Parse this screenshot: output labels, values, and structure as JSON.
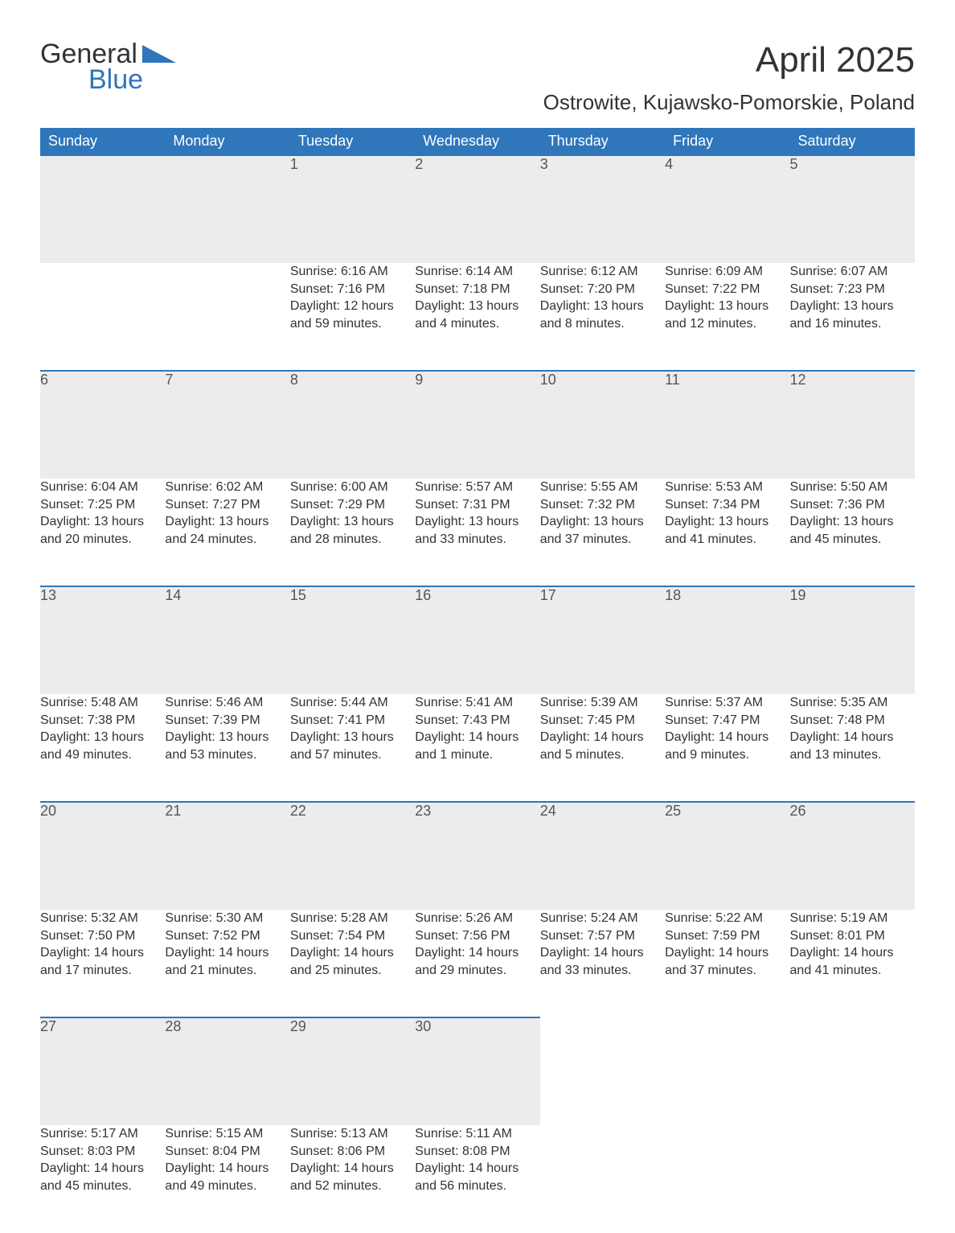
{
  "brand": {
    "word1": "General",
    "word2": "Blue",
    "text_color": "#333333",
    "accent_color": "#2f76bb"
  },
  "title": {
    "month": "April 2025",
    "location": "Ostrowite, Kujawsko-Pomorskie, Poland",
    "month_fontsize": 44,
    "location_fontsize": 26
  },
  "calendar": {
    "type": "table",
    "header_bg": "#2f76bb",
    "header_text_color": "#ffffff",
    "daynum_bg": "#ececec",
    "row_divider_color": "#2f76bb",
    "body_text_color": "#333333",
    "background_color": "#ffffff",
    "columns": [
      "Sunday",
      "Monday",
      "Tuesday",
      "Wednesday",
      "Thursday",
      "Friday",
      "Saturday"
    ],
    "weeks": [
      [
        null,
        null,
        {
          "day": "1",
          "sunrise": "Sunrise: 6:16 AM",
          "sunset": "Sunset: 7:16 PM",
          "dl1": "Daylight: 12 hours",
          "dl2": "and 59 minutes."
        },
        {
          "day": "2",
          "sunrise": "Sunrise: 6:14 AM",
          "sunset": "Sunset: 7:18 PM",
          "dl1": "Daylight: 13 hours",
          "dl2": "and 4 minutes."
        },
        {
          "day": "3",
          "sunrise": "Sunrise: 6:12 AM",
          "sunset": "Sunset: 7:20 PM",
          "dl1": "Daylight: 13 hours",
          "dl2": "and 8 minutes."
        },
        {
          "day": "4",
          "sunrise": "Sunrise: 6:09 AM",
          "sunset": "Sunset: 7:22 PM",
          "dl1": "Daylight: 13 hours",
          "dl2": "and 12 minutes."
        },
        {
          "day": "5",
          "sunrise": "Sunrise: 6:07 AM",
          "sunset": "Sunset: 7:23 PM",
          "dl1": "Daylight: 13 hours",
          "dl2": "and 16 minutes."
        }
      ],
      [
        {
          "day": "6",
          "sunrise": "Sunrise: 6:04 AM",
          "sunset": "Sunset: 7:25 PM",
          "dl1": "Daylight: 13 hours",
          "dl2": "and 20 minutes."
        },
        {
          "day": "7",
          "sunrise": "Sunrise: 6:02 AM",
          "sunset": "Sunset: 7:27 PM",
          "dl1": "Daylight: 13 hours",
          "dl2": "and 24 minutes."
        },
        {
          "day": "8",
          "sunrise": "Sunrise: 6:00 AM",
          "sunset": "Sunset: 7:29 PM",
          "dl1": "Daylight: 13 hours",
          "dl2": "and 28 minutes."
        },
        {
          "day": "9",
          "sunrise": "Sunrise: 5:57 AM",
          "sunset": "Sunset: 7:31 PM",
          "dl1": "Daylight: 13 hours",
          "dl2": "and 33 minutes."
        },
        {
          "day": "10",
          "sunrise": "Sunrise: 5:55 AM",
          "sunset": "Sunset: 7:32 PM",
          "dl1": "Daylight: 13 hours",
          "dl2": "and 37 minutes."
        },
        {
          "day": "11",
          "sunrise": "Sunrise: 5:53 AM",
          "sunset": "Sunset: 7:34 PM",
          "dl1": "Daylight: 13 hours",
          "dl2": "and 41 minutes."
        },
        {
          "day": "12",
          "sunrise": "Sunrise: 5:50 AM",
          "sunset": "Sunset: 7:36 PM",
          "dl1": "Daylight: 13 hours",
          "dl2": "and 45 minutes."
        }
      ],
      [
        {
          "day": "13",
          "sunrise": "Sunrise: 5:48 AM",
          "sunset": "Sunset: 7:38 PM",
          "dl1": "Daylight: 13 hours",
          "dl2": "and 49 minutes."
        },
        {
          "day": "14",
          "sunrise": "Sunrise: 5:46 AM",
          "sunset": "Sunset: 7:39 PM",
          "dl1": "Daylight: 13 hours",
          "dl2": "and 53 minutes."
        },
        {
          "day": "15",
          "sunrise": "Sunrise: 5:44 AM",
          "sunset": "Sunset: 7:41 PM",
          "dl1": "Daylight: 13 hours",
          "dl2": "and 57 minutes."
        },
        {
          "day": "16",
          "sunrise": "Sunrise: 5:41 AM",
          "sunset": "Sunset: 7:43 PM",
          "dl1": "Daylight: 14 hours",
          "dl2": "and 1 minute."
        },
        {
          "day": "17",
          "sunrise": "Sunrise: 5:39 AM",
          "sunset": "Sunset: 7:45 PM",
          "dl1": "Daylight: 14 hours",
          "dl2": "and 5 minutes."
        },
        {
          "day": "18",
          "sunrise": "Sunrise: 5:37 AM",
          "sunset": "Sunset: 7:47 PM",
          "dl1": "Daylight: 14 hours",
          "dl2": "and 9 minutes."
        },
        {
          "day": "19",
          "sunrise": "Sunrise: 5:35 AM",
          "sunset": "Sunset: 7:48 PM",
          "dl1": "Daylight: 14 hours",
          "dl2": "and 13 minutes."
        }
      ],
      [
        {
          "day": "20",
          "sunrise": "Sunrise: 5:32 AM",
          "sunset": "Sunset: 7:50 PM",
          "dl1": "Daylight: 14 hours",
          "dl2": "and 17 minutes."
        },
        {
          "day": "21",
          "sunrise": "Sunrise: 5:30 AM",
          "sunset": "Sunset: 7:52 PM",
          "dl1": "Daylight: 14 hours",
          "dl2": "and 21 minutes."
        },
        {
          "day": "22",
          "sunrise": "Sunrise: 5:28 AM",
          "sunset": "Sunset: 7:54 PM",
          "dl1": "Daylight: 14 hours",
          "dl2": "and 25 minutes."
        },
        {
          "day": "23",
          "sunrise": "Sunrise: 5:26 AM",
          "sunset": "Sunset: 7:56 PM",
          "dl1": "Daylight: 14 hours",
          "dl2": "and 29 minutes."
        },
        {
          "day": "24",
          "sunrise": "Sunrise: 5:24 AM",
          "sunset": "Sunset: 7:57 PM",
          "dl1": "Daylight: 14 hours",
          "dl2": "and 33 minutes."
        },
        {
          "day": "25",
          "sunrise": "Sunrise: 5:22 AM",
          "sunset": "Sunset: 7:59 PM",
          "dl1": "Daylight: 14 hours",
          "dl2": "and 37 minutes."
        },
        {
          "day": "26",
          "sunrise": "Sunrise: 5:19 AM",
          "sunset": "Sunset: 8:01 PM",
          "dl1": "Daylight: 14 hours",
          "dl2": "and 41 minutes."
        }
      ],
      [
        {
          "day": "27",
          "sunrise": "Sunrise: 5:17 AM",
          "sunset": "Sunset: 8:03 PM",
          "dl1": "Daylight: 14 hours",
          "dl2": "and 45 minutes."
        },
        {
          "day": "28",
          "sunrise": "Sunrise: 5:15 AM",
          "sunset": "Sunset: 8:04 PM",
          "dl1": "Daylight: 14 hours",
          "dl2": "and 49 minutes."
        },
        {
          "day": "29",
          "sunrise": "Sunrise: 5:13 AM",
          "sunset": "Sunset: 8:06 PM",
          "dl1": "Daylight: 14 hours",
          "dl2": "and 52 minutes."
        },
        {
          "day": "30",
          "sunrise": "Sunrise: 5:11 AM",
          "sunset": "Sunset: 8:08 PM",
          "dl1": "Daylight: 14 hours",
          "dl2": "and 56 minutes."
        },
        null,
        null,
        null
      ]
    ]
  }
}
